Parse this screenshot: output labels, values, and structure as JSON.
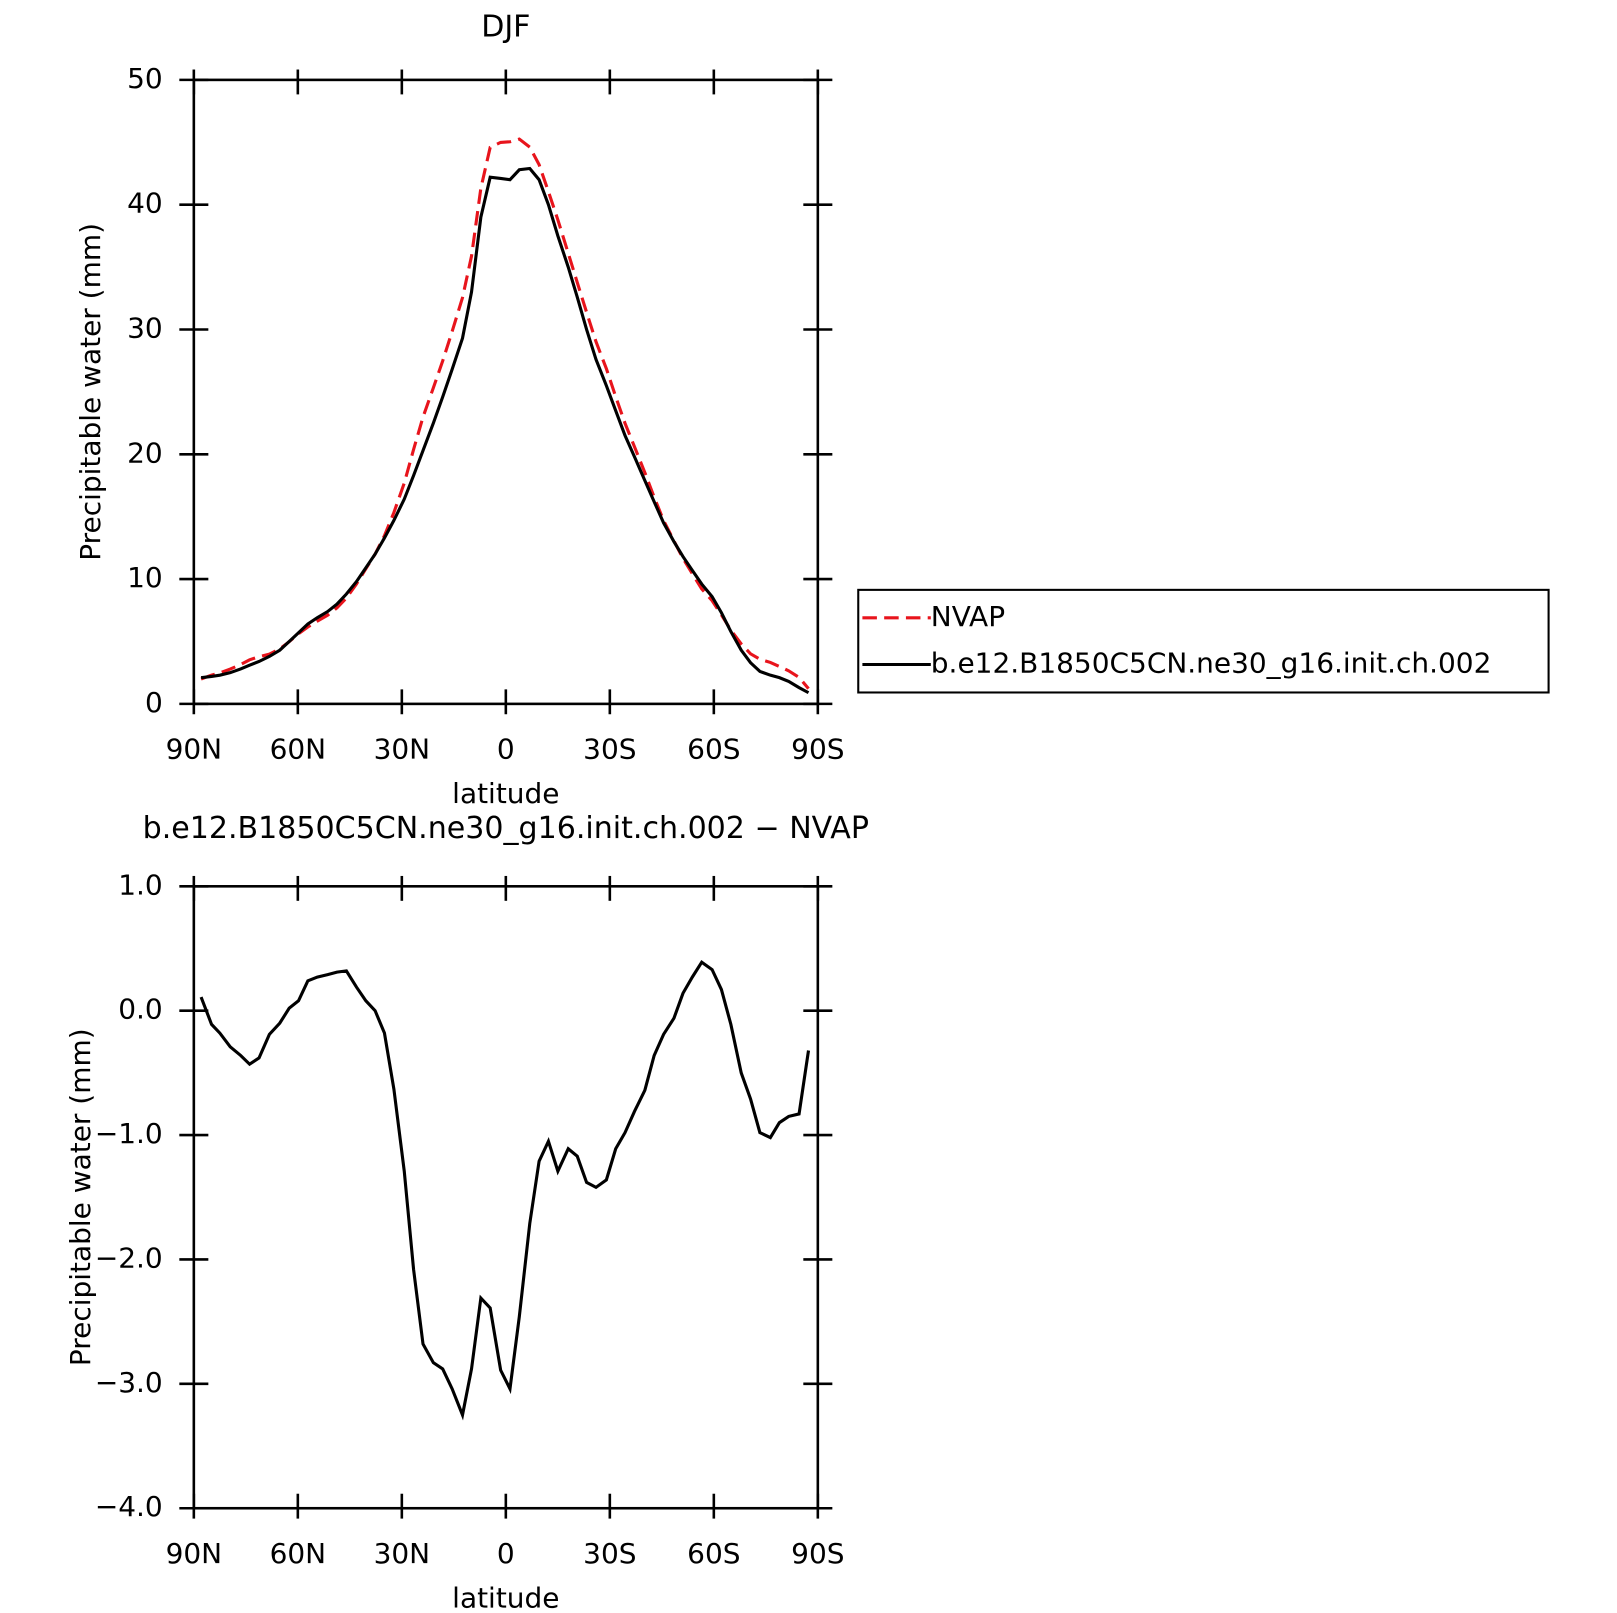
{
  "chart_data": [
    {
      "type": "line",
      "title": "DJF",
      "xlabel": "latitude",
      "ylabel": "Precipitable water (mm)",
      "x": [
        87.9,
        84.9,
        82.5,
        79.5,
        76.5,
        73.9,
        71.2,
        68.2,
        65.2,
        62.5,
        59.8,
        57.1,
        54.4,
        51.4,
        48.7,
        46.0,
        43.1,
        40.4,
        37.7,
        35.0,
        32.3,
        29.3,
        26.6,
        23.9,
        20.9,
        18.2,
        15.5,
        12.5,
        9.9,
        7.2,
        4.5,
        1.5,
        -1.2,
        -3.9,
        -6.9,
        -9.6,
        -12.3,
        -15.0,
        -18.0,
        -20.6,
        -23.3,
        -26.0,
        -29.0,
        -31.7,
        -34.4,
        -37.1,
        -40.1,
        -42.8,
        -45.5,
        -48.5,
        -51.1,
        -53.8,
        -56.5,
        -59.5,
        -62.2,
        -64.9,
        -67.9,
        -70.6,
        -73.3,
        -76.3,
        -78.9,
        -81.6,
        -84.6,
        -87.3
      ],
      "series": [
        {
          "name": "NVAP",
          "color": "#e8141c",
          "line_style": "dashed",
          "values": [
            1.99,
            2.31,
            2.48,
            2.79,
            3.16,
            3.53,
            3.78,
            3.99,
            4.4,
            4.98,
            5.62,
            6.16,
            6.63,
            7.11,
            7.69,
            8.48,
            9.61,
            10.82,
            12.0,
            13.48,
            15.33,
            17.69,
            20.38,
            22.98,
            25.33,
            27.48,
            29.84,
            32.55,
            35.88,
            41.31,
            44.59,
            44.99,
            45.04,
            45.26,
            44.61,
            43.21,
            41.05,
            38.79,
            36.11,
            33.77,
            31.38,
            29.02,
            26.86,
            24.61,
            22.48,
            20.61,
            18.54,
            16.56,
            14.69,
            13.06,
            11.66,
            10.43,
            9.21,
            8.27,
            7.13,
            5.91,
            4.8,
            4.01,
            3.58,
            3.32,
            3.0,
            2.65,
            2.13,
            1.22
          ]
        },
        {
          "name": "b.e12.B1850C5CN.ne30_g16.init.ch.002",
          "color": "#000000",
          "line_style": "solid",
          "values": [
            2.1,
            2.2,
            2.3,
            2.5,
            2.8,
            3.1,
            3.4,
            3.8,
            4.3,
            5.0,
            5.7,
            6.4,
            6.9,
            7.4,
            8.0,
            8.8,
            9.8,
            10.9,
            12.0,
            13.3,
            14.7,
            16.4,
            18.3,
            20.3,
            22.5,
            24.6,
            26.8,
            29.3,
            33.0,
            39.0,
            42.2,
            42.1,
            42.0,
            42.8,
            42.9,
            42.0,
            40.0,
            37.5,
            35.0,
            32.6,
            30.0,
            27.6,
            25.5,
            23.5,
            21.5,
            19.8,
            17.9,
            16.2,
            14.5,
            13.0,
            11.8,
            10.7,
            9.6,
            8.6,
            7.3,
            5.8,
            4.3,
            3.3,
            2.6,
            2.3,
            2.1,
            1.8,
            1.3,
            0.9
          ]
        }
      ],
      "xlim": [
        90,
        -90
      ],
      "xticks": [
        {
          "value": 90,
          "label": "90N"
        },
        {
          "value": 60,
          "label": "60N"
        },
        {
          "value": 30,
          "label": "30N"
        },
        0,
        {
          "value": -30,
          "label": "30S"
        },
        {
          "value": -60,
          "label": "60S"
        },
        {
          "value": -90,
          "label": "90S"
        }
      ],
      "ylim": [
        0,
        50
      ],
      "yticks": [
        0,
        10,
        20,
        30,
        40,
        50
      ],
      "legend": "right"
    },
    {
      "type": "line",
      "title": "b.e12.B1850C5CN.ne30_g16.init.ch.002 − NVAP",
      "xlabel": "latitude",
      "ylabel": "Precipitable water (mm)",
      "x": [
        87.9,
        84.9,
        82.5,
        79.5,
        76.5,
        73.9,
        71.2,
        68.2,
        65.2,
        62.5,
        59.8,
        57.1,
        54.4,
        51.4,
        48.7,
        46.0,
        43.1,
        40.4,
        37.7,
        35.0,
        32.3,
        29.3,
        26.6,
        23.9,
        20.9,
        18.2,
        15.5,
        12.5,
        9.9,
        7.2,
        4.5,
        1.5,
        -1.2,
        -3.9,
        -6.9,
        -9.6,
        -12.3,
        -15.0,
        -18.0,
        -20.6,
        -23.3,
        -26.0,
        -29.0,
        -31.7,
        -34.4,
        -37.1,
        -40.1,
        -42.8,
        -45.5,
        -48.5,
        -51.1,
        -53.8,
        -56.5,
        -59.5,
        -62.2,
        -64.9,
        -67.9,
        -70.6,
        -73.3,
        -76.3,
        -78.9,
        -81.6,
        -84.6,
        -87.3
      ],
      "values": [
        0.11,
        -0.11,
        -0.18,
        -0.29,
        -0.36,
        -0.43,
        -0.38,
        -0.19,
        -0.1,
        0.02,
        0.08,
        0.24,
        0.27,
        0.29,
        0.31,
        0.32,
        0.19,
        0.08,
        0.0,
        -0.18,
        -0.63,
        -1.29,
        -2.08,
        -2.68,
        -2.83,
        -2.88,
        -3.04,
        -3.25,
        -2.88,
        -2.31,
        -2.39,
        -2.89,
        -3.04,
        -2.46,
        -1.71,
        -1.21,
        -1.05,
        -1.29,
        -1.11,
        -1.17,
        -1.38,
        -1.42,
        -1.36,
        -1.11,
        -0.98,
        -0.81,
        -0.64,
        -0.36,
        -0.19,
        -0.06,
        0.14,
        0.27,
        0.39,
        0.33,
        0.17,
        -0.11,
        -0.5,
        -0.71,
        -0.98,
        -1.02,
        -0.9,
        -0.85,
        -0.83,
        -0.32
      ],
      "color": "#000000",
      "xlim": [
        90,
        -90
      ],
      "xticks": [
        {
          "value": 90,
          "label": "90N"
        },
        {
          "value": 60,
          "label": "60N"
        },
        {
          "value": 30,
          "label": "30N"
        },
        0,
        {
          "value": -30,
          "label": "30S"
        },
        {
          "value": -60,
          "label": "60S"
        },
        {
          "value": -90,
          "label": "90S"
        }
      ],
      "ylim": [
        -4,
        1
      ],
      "yticks": [
        {
          "value": -4,
          "label": "−4.0"
        },
        {
          "value": -3,
          "label": "−3.0"
        },
        {
          "value": -2,
          "label": "−2.0"
        },
        {
          "value": -1,
          "label": "−1.0"
        },
        {
          "value": 0,
          "label": "0.0"
        },
        {
          "value": 1,
          "label": "1.0"
        }
      ]
    }
  ]
}
